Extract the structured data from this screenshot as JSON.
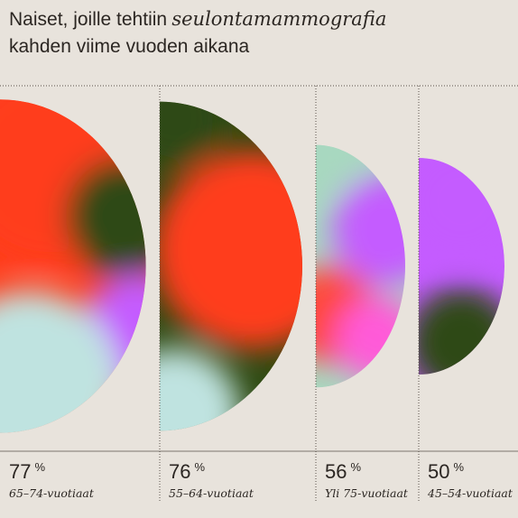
{
  "chart_data": {
    "type": "half-disc",
    "title": "Naiset, joille tehtiin",
    "title_emphasis": "seulontamammografia",
    "subtitle": "kahden viime vuoden aikana",
    "categories": [
      "65–74-vuotiaat",
      "55–64-vuotiaat",
      "Yli 75-vuotiaat",
      "45–54-vuotiaat"
    ],
    "values": [
      77,
      76,
      56,
      50
    ],
    "unit": "%"
  }
}
